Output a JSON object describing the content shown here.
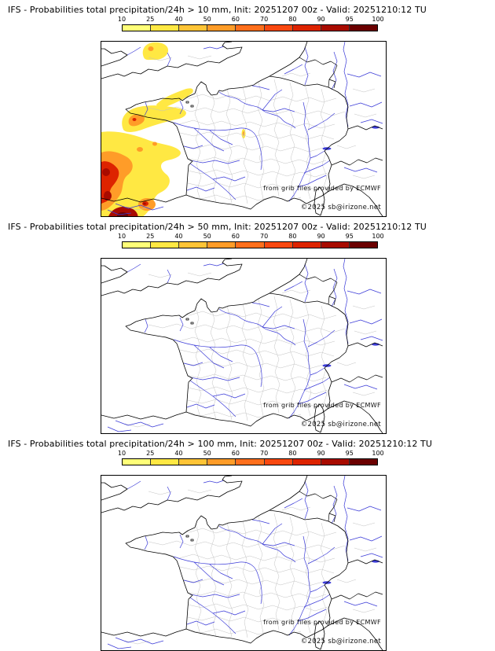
{
  "colorbar": {
    "tick_labels": [
      "10",
      "25",
      "40",
      "50",
      "60",
      "70",
      "80",
      "90",
      "95",
      "100"
    ],
    "segment_colors": [
      "#ffff78",
      "#ffe843",
      "#ffc436",
      "#ff9c28",
      "#ff6f1c",
      "#f94810",
      "#dd2300",
      "#a80b00",
      "#6b0000"
    ]
  },
  "map_colors": {
    "coastline": "#000000",
    "department_boundaries": "#c2c2c2",
    "rivers": "#3c3cd8"
  },
  "panels": [
    {
      "title": "IFS - Probabilities total precipitation/24h > 10 mm, Init: 20251207 00z - Valid: 20251210:12 TU",
      "threshold": "10 mm",
      "attribution": [
        "from grib files provided by ECMWF",
        "©2025 sb@irizone.net"
      ]
    },
    {
      "title": "IFS - Probabilities total precipitation/24h > 50 mm, Init: 20251207 00z - Valid: 20251210:12 TU",
      "threshold": "50 mm",
      "attribution": [
        "from grib files provided by ECMWF",
        "©2025 sb@irizone.net"
      ]
    },
    {
      "title": "IFS - Probabilities total precipitation/24h > 100 mm, Init: 20251207 00z - Valid: 20251210:12 TU",
      "threshold": "100 mm",
      "attribution": [
        "from grib files provided by ECMWF",
        "©2025 sb@irizone.net"
      ]
    }
  ]
}
